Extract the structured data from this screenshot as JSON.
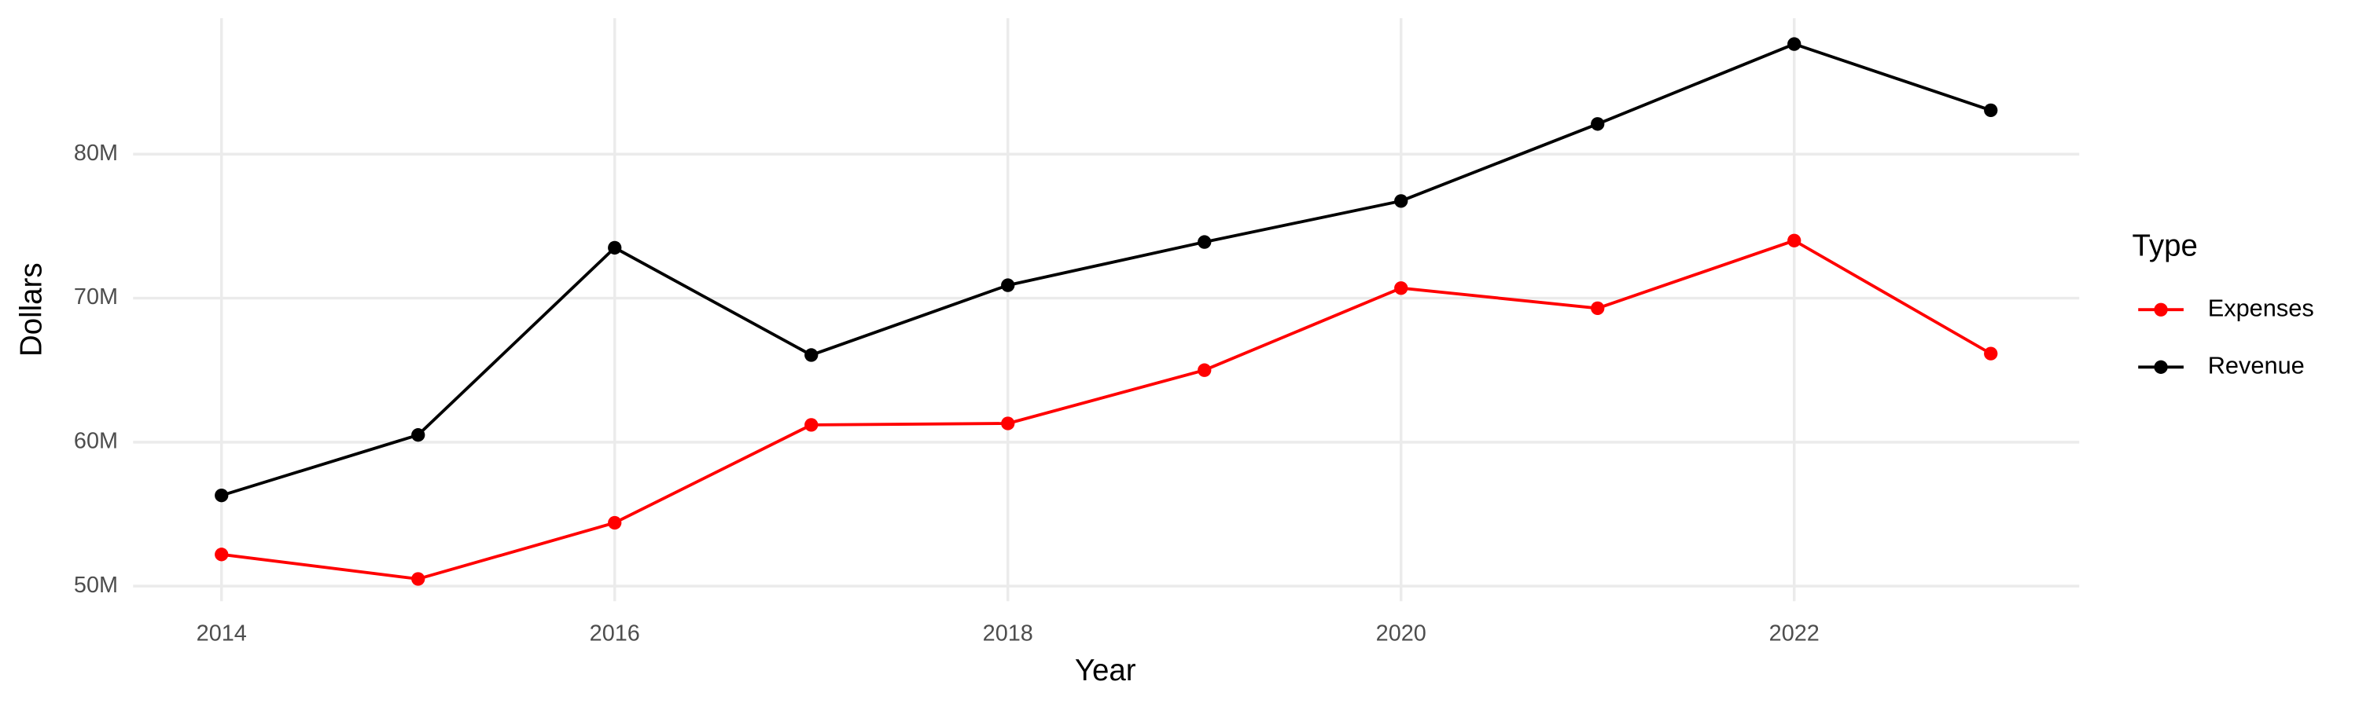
{
  "chart_data": {
    "type": "line",
    "x_label": "Year",
    "y_label": "Dollars",
    "legend_title": "Type",
    "x": [
      2014,
      2015,
      2016,
      2017,
      2018,
      2019,
      2020,
      2021,
      2022,
      2023
    ],
    "series": [
      {
        "name": "Expenses",
        "color": "#ff0000",
        "values": [
          52200000,
          50500000,
          54400000,
          61200000,
          61300000,
          65000000,
          70700000,
          69300000,
          74000000,
          66150000
        ]
      },
      {
        "name": "Revenue",
        "color": "#000000",
        "values": [
          56300000,
          60500000,
          73500000,
          66050000,
          70900000,
          73900000,
          76750000,
          82100000,
          87650000,
          83050000
        ]
      }
    ],
    "xlim": [
      2013.55,
      2023.45
    ],
    "xticks": [
      2014,
      2016,
      2018,
      2020,
      2022
    ],
    "ylim": [
      48950000,
      89450000
    ],
    "yticks": [
      {
        "value": 50000000,
        "label": "50M"
      },
      {
        "value": 60000000,
        "label": "60M"
      },
      {
        "value": 70000000,
        "label": "70M"
      },
      {
        "value": 80000000,
        "label": "80M"
      }
    ],
    "grid": true,
    "legend": "right"
  }
}
